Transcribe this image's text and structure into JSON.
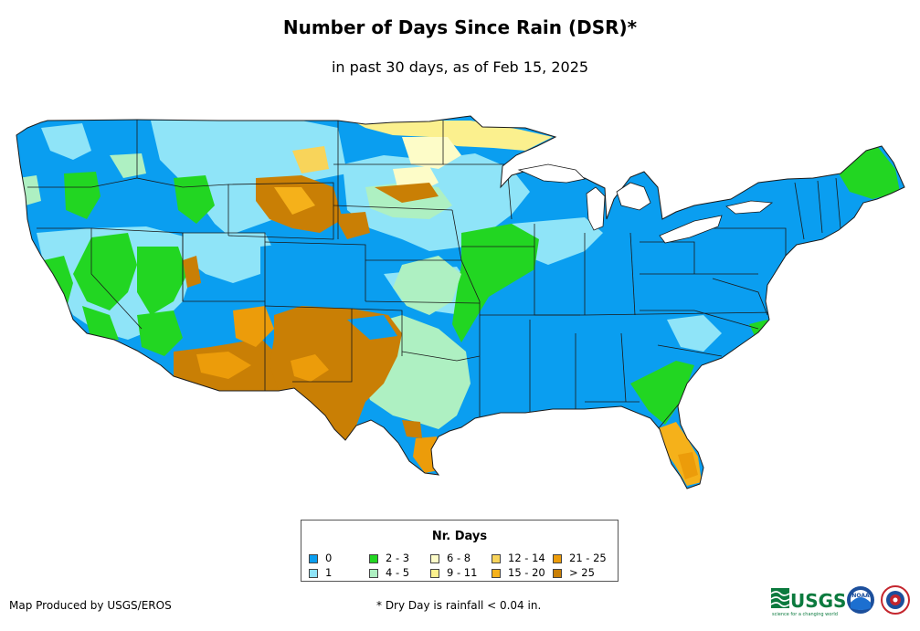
{
  "title": "Number of Days Since Rain (DSR)*",
  "subtitle": "in past 30 days, as of Feb 15, 2025",
  "legend": {
    "title": "Nr. Days",
    "items": [
      {
        "label": "0",
        "color": "#0a9ef0"
      },
      {
        "label": "1",
        "color": "#8fe4f8"
      },
      {
        "label": "2 - 3",
        "color": "#22d622"
      },
      {
        "label": "4 - 5",
        "color": "#aef0c2"
      },
      {
        "label": "6 - 8",
        "color": "#fdfcc8"
      },
      {
        "label": "9 - 11",
        "color": "#fbf08e"
      },
      {
        "label": "12 - 14",
        "color": "#f8d45a"
      },
      {
        "label": "15 - 20",
        "color": "#f5b11a"
      },
      {
        "label": "21 - 25",
        "color": "#ec9c0a"
      },
      {
        "label": "> 25",
        "color": "#c97f05"
      }
    ]
  },
  "credit": "Map Produced by USGS/EROS",
  "footnote": "* Dry Day is rainfall < 0.04 in.",
  "logos": {
    "usgs": "USGS",
    "usgs_tagline": "science for a changing world",
    "noaa": "NOAA"
  }
}
